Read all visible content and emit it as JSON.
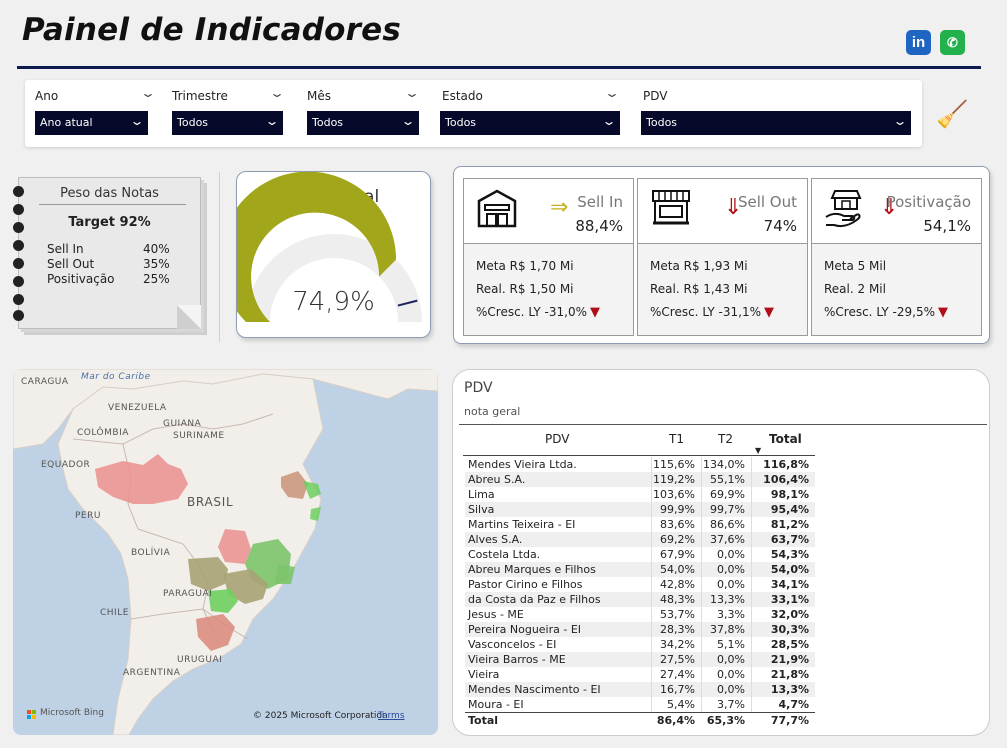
{
  "header": {
    "title": "Painel de Indicadores",
    "linkedin_icon_text": "in",
    "whatsapp_icon_text": "✆"
  },
  "filters": [
    {
      "label": "Ano",
      "value": "Ano atual"
    },
    {
      "label": "Trimestre",
      "value": "Todos"
    },
    {
      "label": "Mês",
      "value": "Todos"
    },
    {
      "label": "Estado",
      "value": "Todos"
    },
    {
      "label": "PDV",
      "value": "Todos"
    }
  ],
  "notes": {
    "title": "Peso das Notas",
    "target": "Target 92%",
    "weights": [
      {
        "label": "Sell In",
        "value": "40%"
      },
      {
        "label": "Sell Out",
        "value": "35%"
      },
      {
        "label": "Positivação",
        "value": "25%"
      }
    ]
  },
  "gauge": {
    "title": "Nota Geral",
    "value_text": "74,9%",
    "value": 0.749,
    "target": 0.92,
    "fill_color": "#a1a61b",
    "track_color": "#eeeeee"
  },
  "kpis": [
    {
      "name": "Sell In",
      "value": "88,4%",
      "trend": "up",
      "trend_glyph": "⇒",
      "meta": "Meta R$ 1,70 Mi",
      "real": "Real. R$ 1,50 Mi",
      "cresc": "%Cresc. LY -31,0%",
      "icon": "warehouse-icon"
    },
    {
      "name": "Sell Out",
      "value": "74%",
      "trend": "down",
      "trend_glyph": "⇓",
      "meta": "Meta R$ 1,93 Mi",
      "real": "Real. R$ 1,43 Mi",
      "cresc": "%Cresc. LY -31,1%",
      "icon": "storefront-icon"
    },
    {
      "name": "Positivação",
      "value": "54,1%",
      "trend": "down",
      "trend_glyph": "⇓",
      "meta": "Meta 5 Mil",
      "real": "Real. 2 Mil",
      "cresc": "%Cresc. LY -29,5%",
      "icon": "store-hand-icon"
    }
  ],
  "map": {
    "labels": {
      "caragua": "CARAGUA",
      "mar": "Mar do Caribe",
      "venezuela": "VENEZUELA",
      "guiana": "GUIANA",
      "colombia": "COLÔMBIA",
      "suriname": "SURINAME",
      "equador": "EQUADOR",
      "brasil": "BRASIL",
      "peru": "PERU",
      "bolivia": "BOLÍVIA",
      "paraguai": "PARAGUAI",
      "chile": "CHILE",
      "argentina": "ARGENTINA",
      "uruguai": "URUGUAI"
    },
    "bing": "Microsoft Bing",
    "copyright": "© 2025 Microsoft Corporation",
    "terms": "Terms"
  },
  "table": {
    "title": "PDV",
    "subtitle": "nota geral",
    "columns": [
      "PDV",
      "T1",
      "T2",
      "Total"
    ],
    "rows": [
      [
        "Mendes Vieira Ltda.",
        "115,6%",
        "134,0%",
        "116,8%"
      ],
      [
        "Abreu S.A.",
        "119,2%",
        "55,1%",
        "106,4%"
      ],
      [
        "Lima",
        "103,6%",
        "69,9%",
        "98,1%"
      ],
      [
        "Silva",
        "99,9%",
        "99,7%",
        "95,4%"
      ],
      [
        "Martins Teixeira - EI",
        "83,6%",
        "86,6%",
        "81,2%"
      ],
      [
        "Alves S.A.",
        "69,2%",
        "37,6%",
        "63,7%"
      ],
      [
        "Costela Ltda.",
        "67,9%",
        "0,0%",
        "54,3%"
      ],
      [
        "Abreu Marques e Filhos",
        "54,0%",
        "0,0%",
        "54,0%"
      ],
      [
        "Pastor Cirino e Filhos",
        "42,8%",
        "0,0%",
        "34,1%"
      ],
      [
        "da Costa da Paz e Filhos",
        "48,3%",
        "13,3%",
        "33,1%"
      ],
      [
        "Jesus - ME",
        "53,7%",
        "3,3%",
        "32,0%"
      ],
      [
        "Pereira Nogueira - EI",
        "28,3%",
        "37,8%",
        "30,3%"
      ],
      [
        "Vasconcelos - EI",
        "34,2%",
        "5,1%",
        "28,5%"
      ],
      [
        "Vieira Barros - ME",
        "27,5%",
        "0,0%",
        "21,9%"
      ],
      [
        "Vieira",
        "27,4%",
        "0,0%",
        "21,8%"
      ],
      [
        "Mendes Nascimento - EI",
        "16,7%",
        "0,0%",
        "13,3%"
      ],
      [
        "Moura - EI",
        "5,4%",
        "3,7%",
        "4,7%"
      ]
    ],
    "total": [
      "Total",
      "86,4%",
      "65,3%",
      "77,7%"
    ]
  }
}
